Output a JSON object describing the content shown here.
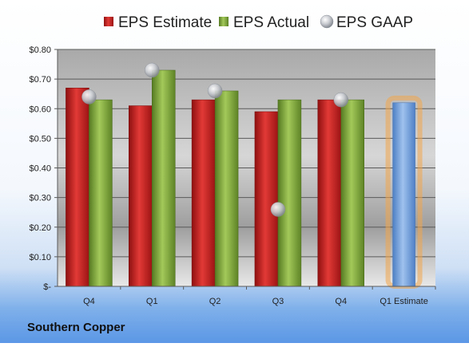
{
  "chart_data": {
    "type": "bar",
    "categories": [
      "Q4",
      "Q1",
      "Q2",
      "Q3",
      "Q4",
      "Q1 Estimate"
    ],
    "series": [
      {
        "name": "EPS Estimate",
        "kind": "bar",
        "values": [
          0.67,
          0.61,
          0.63,
          0.59,
          0.63,
          null
        ]
      },
      {
        "name": "EPS Actual",
        "kind": "bar",
        "values": [
          0.63,
          0.73,
          0.66,
          0.63,
          0.63,
          0.62
        ]
      },
      {
        "name": "EPS GAAP",
        "kind": "marker",
        "values": [
          0.64,
          0.73,
          0.66,
          0.26,
          0.63,
          null
        ]
      }
    ],
    "ylim": [
      0,
      0.8
    ],
    "yticks": [
      0,
      0.1,
      0.2,
      0.3,
      0.4,
      0.5,
      0.6,
      0.7,
      0.8
    ],
    "ytick_labels": [
      "$-",
      "$0.10",
      "$0.20",
      "$0.30",
      "$0.40",
      "$0.50",
      "$0.60",
      "$0.70",
      "$0.80"
    ],
    "grid": true,
    "legend_position": "top",
    "colors": {
      "estimate": "#c8201f",
      "actual": "#7ea83a",
      "gaap": "#b9bdc4",
      "projection": "#6c9bd6",
      "projection_glow": "#f3a64a"
    },
    "projection_category": "Q1 Estimate"
  },
  "footer": {
    "company": "Southern Copper"
  }
}
